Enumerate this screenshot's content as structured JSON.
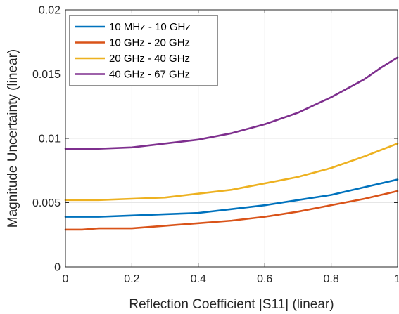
{
  "chart_data": {
    "type": "line",
    "title": "",
    "xlabel": "Reflection Coefficient |S11| (linear)",
    "ylabel": "Magnitude Uncertainty (linear)",
    "xlim": [
      0,
      1
    ],
    "ylim": [
      0,
      0.02
    ],
    "x_ticks": [
      0,
      0.2,
      0.4,
      0.6,
      0.8,
      1
    ],
    "x_tick_labels": [
      "0",
      "0.2",
      "0.4",
      "0.6",
      "0.8",
      "1"
    ],
    "y_ticks": [
      0,
      0.005,
      0.01,
      0.015,
      0.02
    ],
    "y_tick_labels": [
      "0",
      "0.005",
      "0.01",
      "0.015",
      "0.02"
    ],
    "grid": true,
    "legend_position": "top-left",
    "series": [
      {
        "name": "10 MHz - 10 GHz",
        "color": "#0072BD",
        "x": [
          0,
          0.05,
          0.1,
          0.2,
          0.3,
          0.4,
          0.5,
          0.6,
          0.7,
          0.8,
          0.9,
          1.0
        ],
        "y": [
          0.0039,
          0.0039,
          0.0039,
          0.004,
          0.0041,
          0.0042,
          0.0045,
          0.0048,
          0.0052,
          0.0056,
          0.0062,
          0.0068
        ]
      },
      {
        "name": "10 GHz - 20 GHz",
        "color": "#D95319",
        "x": [
          0,
          0.05,
          0.1,
          0.2,
          0.3,
          0.4,
          0.5,
          0.6,
          0.7,
          0.8,
          0.9,
          1.0
        ],
        "y": [
          0.0029,
          0.0029,
          0.003,
          0.003,
          0.0032,
          0.0034,
          0.0036,
          0.0039,
          0.0043,
          0.0048,
          0.0053,
          0.0059
        ]
      },
      {
        "name": "20 GHz - 40 GHz",
        "color": "#EDB120",
        "x": [
          0,
          0.05,
          0.1,
          0.2,
          0.3,
          0.4,
          0.5,
          0.6,
          0.7,
          0.8,
          0.9,
          1.0
        ],
        "y": [
          0.0052,
          0.0052,
          0.0052,
          0.0053,
          0.0054,
          0.0057,
          0.006,
          0.0065,
          0.007,
          0.0077,
          0.0086,
          0.0096
        ]
      },
      {
        "name": "40 GHz - 67 GHz",
        "color": "#7E2F8E",
        "x": [
          0,
          0.05,
          0.1,
          0.2,
          0.3,
          0.4,
          0.5,
          0.6,
          0.7,
          0.8,
          0.9,
          0.95,
          1.0
        ],
        "y": [
          0.0092,
          0.0092,
          0.0092,
          0.0093,
          0.0096,
          0.0099,
          0.0104,
          0.0111,
          0.012,
          0.0132,
          0.0146,
          0.0155,
          0.0163
        ]
      }
    ]
  }
}
